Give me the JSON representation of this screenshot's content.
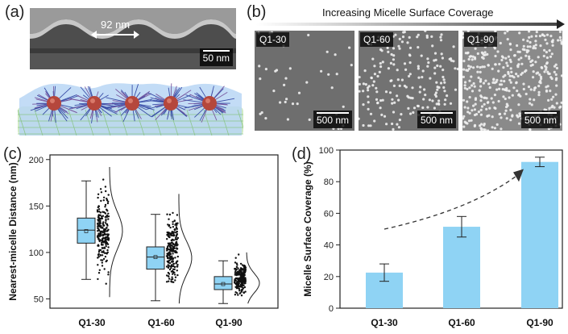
{
  "panels": {
    "a": {
      "label": "(a)",
      "spacing": "92 nm",
      "scale": "50 nm"
    },
    "b": {
      "label": "(b)",
      "header": "Increasing Micelle Surface Coverage",
      "images": [
        {
          "tag": "Q1-30",
          "scale": "500 nm",
          "density": 0.1,
          "tone": "#6e6e6e"
        },
        {
          "tag": "Q1-60",
          "scale": "500 nm",
          "density": 0.45,
          "tone": "#727272"
        },
        {
          "tag": "Q1-90",
          "scale": "500 nm",
          "density": 0.95,
          "tone": "#8a8a8a"
        }
      ]
    },
    "c": {
      "label": "(c)"
    },
    "d": {
      "label": "(d)"
    }
  },
  "chart_data": [
    {
      "type": "box",
      "ylabel": "Nearest-micelle Distance (nm)",
      "categories": [
        "Q1-30",
        "Q1-60",
        "Q1-90"
      ],
      "yticks": [
        50,
        100,
        150,
        200
      ],
      "ylim": [
        40,
        205
      ],
      "box_color": "#8fd3f4",
      "series": [
        {
          "category": "Q1-30",
          "whisker_low": 71,
          "q1": 110,
          "median": 124,
          "mean": 123,
          "q3": 137,
          "whisker_high": 177,
          "points_min": 52,
          "points_max": 192
        },
        {
          "category": "Q1-60",
          "whisker_low": 48,
          "q1": 82,
          "median": 95,
          "mean": 95,
          "q3": 106,
          "whisker_high": 141,
          "points_min": 45,
          "points_max": 163
        },
        {
          "category": "Q1-90",
          "whisker_low": 45,
          "q1": 60,
          "median": 66,
          "mean": 66,
          "q3": 74,
          "whisker_high": 91,
          "points_min": 45,
          "points_max": 100
        }
      ]
    },
    {
      "type": "bar",
      "ylabel": "Micelle Surface Coverage (%)",
      "categories": [
        "Q1-30",
        "Q1-60",
        "Q1-90"
      ],
      "values": [
        22.5,
        51.5,
        92.5
      ],
      "errors": [
        5.5,
        6.5,
        3.0
      ],
      "yticks": [
        0,
        20,
        40,
        60,
        80,
        100
      ],
      "ylim": [
        0,
        100
      ],
      "bar_color": "#8fd3f4"
    }
  ]
}
